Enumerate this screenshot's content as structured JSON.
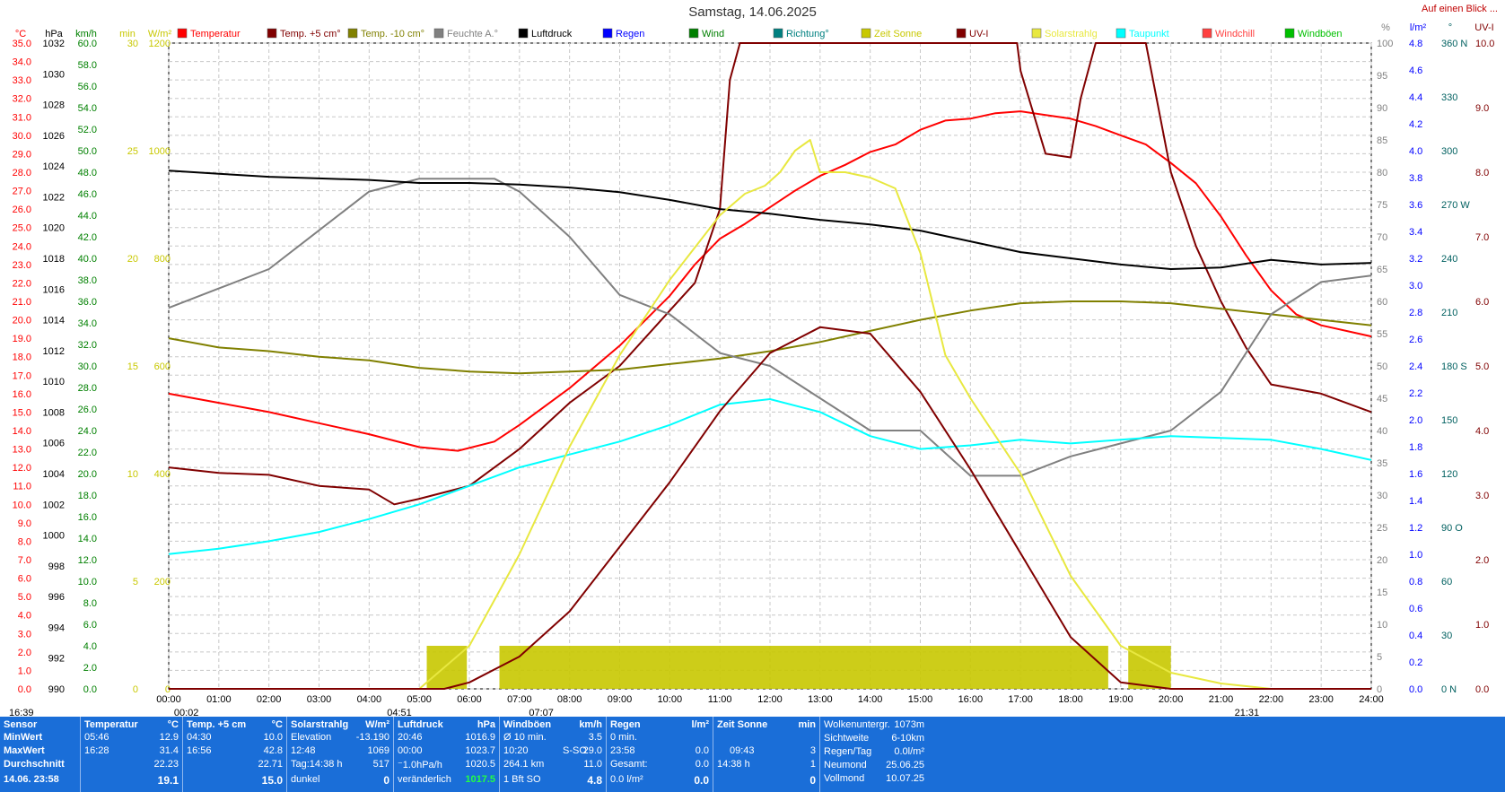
{
  "title": "Samstag, 14.06.2025",
  "corner_label": "Auf einen Blick ...",
  "chart_data": {
    "type": "line",
    "x_ticks": [
      "00:00",
      "01:00",
      "02:00",
      "03:00",
      "04:00",
      "05:00",
      "06:00",
      "07:00",
      "08:00",
      "09:00",
      "10:00",
      "11:00",
      "12:00",
      "13:00",
      "14:00",
      "15:00",
      "16:00",
      "17:00",
      "18:00",
      "19:00",
      "20:00",
      "21:00",
      "22:00",
      "23:00",
      "24:00"
    ],
    "xlim": [
      0,
      24
    ],
    "grid": true,
    "axes_left": [
      {
        "unit": "°C",
        "color": "#ff0000",
        "ticks": [
          "35.0",
          "34.0",
          "33.0",
          "32.0",
          "31.0",
          "30.0",
          "29.0",
          "28.0",
          "27.0",
          "26.0",
          "25.0",
          "24.0",
          "23.0",
          "22.0",
          "21.0",
          "20.0",
          "19.0",
          "18.0",
          "17.0",
          "16.0",
          "15.0",
          "14.0",
          "13.0",
          "12.0",
          "11.0",
          "10.0",
          "9.0",
          "8.0",
          "7.0",
          "6.0",
          "5.0",
          "4.0",
          "3.0",
          "2.0",
          "1.0",
          "0.0"
        ]
      },
      {
        "unit": "hPa",
        "color": "#000000",
        "ticks": [
          "1032",
          "1030",
          "1028",
          "1026",
          "1024",
          "1022",
          "1020",
          "1018",
          "1016",
          "1014",
          "1012",
          "1010",
          "1008",
          "1006",
          "1004",
          "1002",
          "1000",
          "998",
          "996",
          "994",
          "992",
          "990"
        ]
      },
      {
        "unit": "km/h",
        "color": "#008000",
        "ticks": [
          "60.0",
          "58.0",
          "56.0",
          "54.0",
          "52.0",
          "50.0",
          "48.0",
          "46.0",
          "44.0",
          "42.0",
          "40.0",
          "38.0",
          "36.0",
          "34.0",
          "32.0",
          "30.0",
          "28.0",
          "26.0",
          "24.0",
          "22.0",
          "20.0",
          "18.0",
          "16.0",
          "14.0",
          "12.0",
          "10.0",
          "8.0",
          "6.0",
          "4.0",
          "2.0",
          "0.0"
        ]
      },
      {
        "unit": "min",
        "color": "#c8c800",
        "ticks": [
          "30",
          "25",
          "20",
          "15",
          "10",
          "5",
          "0"
        ]
      },
      {
        "unit": "W/m²",
        "color": "#c8c800",
        "ticks": [
          "1200",
          "1000",
          "800",
          "600",
          "400",
          "200",
          "0"
        ]
      }
    ],
    "axes_right": [
      {
        "unit": "%",
        "color": "#808080",
        "ticks": [
          "100",
          "95",
          "90",
          "85",
          "80",
          "75",
          "70",
          "65",
          "60",
          "55",
          "50",
          "45",
          "40",
          "35",
          "30",
          "25",
          "20",
          "15",
          "10",
          "5",
          "0"
        ]
      },
      {
        "unit": "l/m²",
        "color": "#0000ff",
        "ticks": [
          "4.8",
          "4.6",
          "4.4",
          "4.2",
          "4.0",
          "3.8",
          "3.6",
          "3.4",
          "3.2",
          "3.0",
          "2.8",
          "2.6",
          "2.4",
          "2.2",
          "2.0",
          "1.8",
          "1.6",
          "1.4",
          "1.2",
          "1.0",
          "0.8",
          "0.6",
          "0.4",
          "0.2",
          "0.0"
        ]
      },
      {
        "unit": "°",
        "color": "#006060",
        "ticks": [
          "360 N",
          "330",
          "300",
          "270 W",
          "240",
          "210",
          "180 S",
          "150",
          "120",
          "90 O",
          "60",
          "30",
          "0 N"
        ]
      },
      {
        "unit": "UV-I",
        "color": "#800000",
        "ticks": [
          "10.0",
          "9.0",
          "8.0",
          "7.0",
          "6.0",
          "5.0",
          "4.0",
          "3.0",
          "2.0",
          "1.0",
          "0.0"
        ]
      }
    ],
    "legend": [
      {
        "name": "Temperatur",
        "color": "#ff0000"
      },
      {
        "name": "Temp. +5 cm°",
        "color": "#800000"
      },
      {
        "name": "Temp. -10 cm°",
        "color": "#808000"
      },
      {
        "name": "Feuchte A.°",
        "color": "#808080"
      },
      {
        "name": "Luftdruck",
        "color": "#000000"
      },
      {
        "name": "Regen",
        "color": "#0000ff"
      },
      {
        "name": "Wind",
        "color": "#008000"
      },
      {
        "name": "Richtung°",
        "color": "#008080"
      },
      {
        "name": "Zeit Sonne",
        "color": "#c8c800"
      },
      {
        "name": "UV-I",
        "color": "#800000"
      },
      {
        "name": "Solarstrahlg",
        "color": "#e8e840"
      },
      {
        "name": "Taupunkt",
        "color": "#00ffff"
      },
      {
        "name": "Windchill",
        "color": "#ff4040"
      },
      {
        "name": "Windböen",
        "color": "#00c000"
      }
    ],
    "series": [
      {
        "name": "Temperatur",
        "axis": "°C",
        "color": "#ff0000",
        "x": [
          0,
          1,
          2,
          3,
          4,
          5,
          5.77,
          6.5,
          7,
          8,
          9,
          10,
          10.5,
          11,
          11.5,
          12,
          12.5,
          13,
          13.5,
          14,
          14.5,
          15,
          15.5,
          16,
          16.5,
          17,
          17.5,
          18,
          18.5,
          19,
          19.5,
          20,
          20.5,
          21,
          21.5,
          22,
          22.5,
          23,
          24
        ],
        "y": [
          16.0,
          15.5,
          15.0,
          14.4,
          13.8,
          13.1,
          12.9,
          13.4,
          14.3,
          16.3,
          18.6,
          21.3,
          23.0,
          24.4,
          25.2,
          26.1,
          27.0,
          27.8,
          28.4,
          29.1,
          29.5,
          30.3,
          30.8,
          30.9,
          31.2,
          31.3,
          31.1,
          30.9,
          30.5,
          30.0,
          29.5,
          28.5,
          27.4,
          25.6,
          23.5,
          21.6,
          20.3,
          19.7,
          19.1
        ]
      },
      {
        "name": "Temp. +5 cm°",
        "axis": "°C",
        "color": "#800000",
        "x": [
          0,
          1,
          2,
          3,
          4,
          4.5,
          5,
          6,
          7,
          8,
          9,
          10,
          10.5,
          11,
          11.2,
          11.4,
          12,
          13,
          14,
          15,
          16,
          16.5,
          16.93,
          17,
          17.5,
          18,
          18.2,
          18.5,
          19,
          19.5,
          20,
          20.5,
          21,
          21.5,
          22,
          23,
          24
        ],
        "y": [
          12.0,
          11.7,
          11.6,
          11.0,
          10.8,
          10.0,
          10.3,
          11.0,
          13.0,
          15.5,
          17.5,
          20.5,
          22.0,
          26.0,
          33.0,
          35.0,
          35.0,
          35.0,
          35.0,
          35.0,
          35.0,
          35.0,
          35.0,
          33.5,
          29.0,
          28.8,
          32.0,
          35.0,
          35.0,
          35.0,
          28.0,
          24.0,
          21.0,
          18.5,
          16.5,
          16.0,
          15.0
        ]
      },
      {
        "name": "Temp. -10 cm°",
        "axis": "°C",
        "color": "#808000",
        "x": [
          0,
          1,
          2,
          3,
          4,
          5,
          6,
          7,
          8,
          9,
          10,
          11,
          12,
          13,
          14,
          15,
          16,
          17,
          18,
          19,
          20,
          21,
          22,
          23,
          24
        ],
        "y": [
          19.0,
          18.5,
          18.3,
          18.0,
          17.8,
          17.4,
          17.2,
          17.1,
          17.2,
          17.3,
          17.6,
          17.9,
          18.3,
          18.8,
          19.4,
          20.0,
          20.5,
          20.9,
          21.0,
          21.0,
          20.9,
          20.6,
          20.3,
          20.0,
          19.7
        ]
      },
      {
        "name": "Feuchte A.°",
        "axis": "%",
        "color": "#808080",
        "x": [
          0,
          1,
          2,
          3,
          4,
          5,
          6,
          6.5,
          7,
          8,
          9,
          10,
          11,
          12,
          13,
          14,
          15,
          16,
          17,
          18,
          19,
          20,
          21,
          22,
          23,
          24
        ],
        "y": [
          59,
          62,
          65,
          71,
          77,
          79,
          79,
          79,
          77,
          70,
          61,
          58,
          52,
          50,
          45,
          40,
          40,
          33,
          33,
          36,
          38,
          40,
          46,
          58,
          63,
          64
        ]
      },
      {
        "name": "Luftdruck",
        "axis": "hPa",
        "color": "#000000",
        "x": [
          0,
          1,
          2,
          3,
          4,
          5,
          6,
          7,
          8,
          9,
          10,
          11,
          12,
          13,
          14,
          15,
          16,
          17,
          18,
          19,
          20,
          21,
          22,
          23,
          24
        ],
        "y": [
          1023.7,
          1023.5,
          1023.3,
          1023.2,
          1023.1,
          1022.9,
          1022.9,
          1022.8,
          1022.6,
          1022.3,
          1021.8,
          1021.2,
          1020.9,
          1020.5,
          1020.2,
          1019.8,
          1019.1,
          1018.4,
          1018.0,
          1017.6,
          1017.3,
          1017.4,
          1017.9,
          1017.6,
          1017.7
        ]
      },
      {
        "name": "Taupunkt",
        "axis": "°C",
        "color": "#00ffff",
        "x": [
          0,
          1,
          2,
          3,
          4,
          5,
          6,
          7,
          8,
          9,
          10,
          11,
          12,
          13,
          14,
          15,
          16,
          17,
          18,
          19,
          20,
          21,
          22,
          23,
          24
        ],
        "y": [
          7.3,
          7.6,
          8.0,
          8.5,
          9.2,
          10.0,
          11.0,
          12.0,
          12.7,
          13.4,
          14.3,
          15.4,
          15.7,
          15.0,
          13.7,
          13.0,
          13.2,
          13.5,
          13.3,
          13.5,
          13.7,
          13.6,
          13.5,
          13.0,
          12.4
        ]
      },
      {
        "name": "Solarstrahlg",
        "axis": "W/m²",
        "color": "#e8e840",
        "x": [
          0,
          5,
          6,
          7,
          8,
          9,
          10,
          11,
          11.5,
          11.9,
          12.2,
          12.5,
          12.8,
          13,
          13.5,
          14,
          14.5,
          15,
          15.5,
          16,
          17,
          18,
          19,
          20,
          21,
          22,
          23,
          24
        ],
        "y": [
          0,
          0,
          80,
          250,
          450,
          620,
          760,
          880,
          920,
          935,
          960,
          1000,
          1020,
          960,
          960,
          950,
          930,
          810,
          620,
          540,
          400,
          210,
          80,
          30,
          10,
          0,
          0,
          0
        ]
      },
      {
        "name": "UV-I",
        "axis": "UV-I",
        "color": "#800000",
        "x": [
          0,
          5.5,
          6,
          7,
          8,
          9,
          10,
          11,
          12,
          13,
          14,
          15,
          16,
          17,
          18,
          19,
          20,
          21,
          24
        ],
        "y": [
          0,
          0,
          0.1,
          0.5,
          1.2,
          2.2,
          3.2,
          4.3,
          5.2,
          5.6,
          5.5,
          4.6,
          3.4,
          2.1,
          0.8,
          0.1,
          0,
          0,
          0
        ]
      },
      {
        "name": "Zeit Sonne",
        "axis": "min",
        "color": "#c8c800",
        "segments": [
          [
            5.15,
            5.95
          ],
          [
            6.6,
            18.75
          ],
          [
            19.15,
            20.0
          ]
        ],
        "value": 2
      }
    ],
    "sunrise_marker": "04:51",
    "sunset_marker": "21:31",
    "moonrise_marker": "00:02",
    "moonset_marker": "07:07",
    "time_label_left": "16:39"
  },
  "footer": {
    "sensor": {
      "title": "Sensor",
      "rows": [
        "MinWert",
        "MaxWert",
        "Durchschnitt",
        "14.06. 23:58"
      ]
    },
    "temp": {
      "title": "Temperatur",
      "unit": "°C",
      "rows": [
        [
          "05:46",
          "12.9"
        ],
        [
          "16:28",
          "31.4"
        ],
        [
          "",
          "22.23"
        ],
        [
          "",
          "19.1"
        ]
      ]
    },
    "temp5": {
      "title": "Temp. +5 cm",
      "unit": "°C",
      "rows": [
        [
          "04:30",
          "10.0"
        ],
        [
          "16:56",
          "42.8"
        ],
        [
          "",
          "22.71"
        ],
        [
          "",
          "15.0"
        ]
      ]
    },
    "solar": {
      "title": "Solarstrahlg",
      "unit": "W/m²",
      "rows": [
        [
          "Elevation",
          "-13.190"
        ],
        [
          "12:48",
          "1069"
        ],
        [
          "Tag:14:38 h",
          "517"
        ],
        [
          "dunkel",
          "0"
        ]
      ]
    },
    "pressure": {
      "title": "Luftdruck",
      "unit": "hPa",
      "rows": [
        [
          "20:46",
          "1016.9"
        ],
        [
          "00:00",
          "1023.7"
        ],
        [
          "⁻1.0hPa/h",
          "1020.5"
        ],
        [
          "veränderlich",
          "1017.5"
        ]
      ]
    },
    "gust": {
      "title": "Windböen",
      "unit": "km/h",
      "rows": [
        [
          "Ø 10 min.",
          "",
          "3.5"
        ],
        [
          "10:20",
          "S-SO",
          "29.0"
        ],
        [
          "264.1 km",
          "",
          "11.0"
        ],
        [
          "1 Bft SO",
          "",
          "4.8"
        ]
      ]
    },
    "rain": {
      "title": "Regen",
      "unit": "l/m²",
      "rows": [
        [
          "0 min.",
          ""
        ],
        [
          "23:58",
          "0.0"
        ],
        [
          "Gesamt:",
          "0.0"
        ],
        [
          "0.0 l/m²",
          "0.0"
        ]
      ]
    },
    "sun": {
      "title": "Zeit Sonne",
      "unit": "min",
      "rows": [
        [
          "",
          ""
        ],
        [
          "09:43",
          "3"
        ],
        [
          "14:38 h",
          "1"
        ],
        [
          "",
          "0"
        ]
      ]
    },
    "info": {
      "rows": [
        [
          "Wolkenuntergr.",
          "1073m"
        ],
        [
          "Sichtweite",
          "6-10km"
        ],
        [
          "Regen/Tag",
          "0.0l/m²"
        ],
        [
          "Neumond",
          "25.06.25"
        ],
        [
          "Vollmond",
          "10.07.25"
        ]
      ]
    }
  }
}
